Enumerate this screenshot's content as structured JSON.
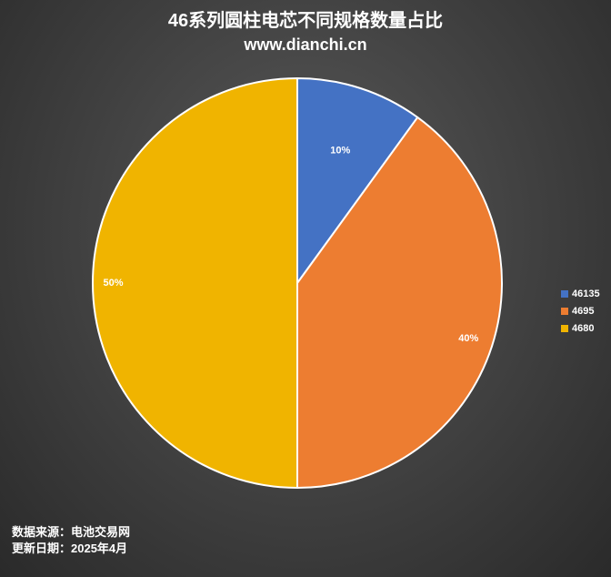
{
  "chart_data": {
    "type": "pie",
    "title": "46系列圆柱电芯不同规格数量占比",
    "subtitle": "www.dianchi.cn",
    "categories": [
      "46135",
      "4695",
      "4680"
    ],
    "values": [
      10,
      40,
      50
    ],
    "data_labels": [
      "10%",
      "40%",
      "50%"
    ],
    "colors": [
      "#4472C4",
      "#ED7D31",
      "#F0B400"
    ],
    "legend_position": "right"
  },
  "footer": {
    "source": "数据来源：电池交易网",
    "date": "更新日期：2025年4月"
  }
}
